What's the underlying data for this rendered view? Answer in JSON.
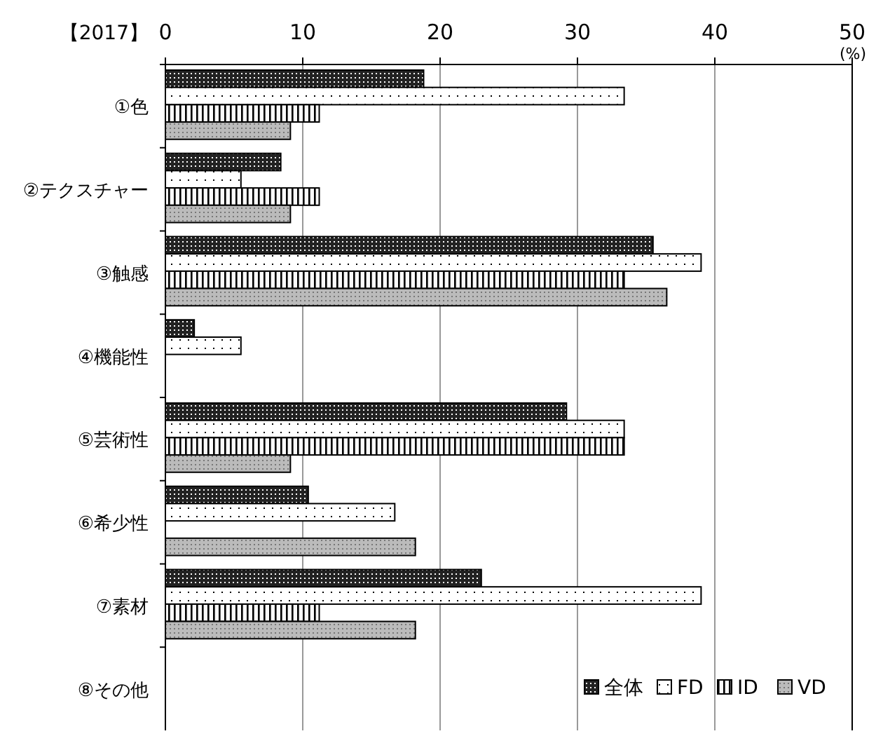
{
  "chart_data": {
    "type": "bar",
    "orientation": "horizontal",
    "title": "【2017】",
    "xlabel": "(%)",
    "categories": [
      "①色",
      "②テクスチャー",
      "③触感",
      "④機能性",
      "⑤芸術性",
      "⑥希少性",
      "⑦素材",
      "⑧その他"
    ],
    "series": [
      {
        "name": "全体",
        "color": "#222222",
        "values": [
          18.8,
          8.4,
          35.5,
          2.1,
          29.2,
          10.4,
          23.0,
          0
        ]
      },
      {
        "name": "FD",
        "color": "#ffffff",
        "values": [
          33.4,
          5.5,
          39.0,
          5.5,
          33.4,
          16.7,
          39.0,
          0
        ]
      },
      {
        "name": "ID",
        "color": "#fafafa",
        "values": [
          11.2,
          11.2,
          33.4,
          0,
          33.4,
          0,
          11.2,
          0
        ]
      },
      {
        "name": "VD",
        "color": "#bbbbbb",
        "values": [
          9.1,
          9.1,
          36.5,
          0,
          9.1,
          18.2,
          18.2,
          0
        ]
      }
    ],
    "xlim": [
      0,
      50
    ],
    "xticks": [
      0,
      10,
      20,
      30,
      40,
      50
    ],
    "grid": "x",
    "legend": "bottom right"
  }
}
